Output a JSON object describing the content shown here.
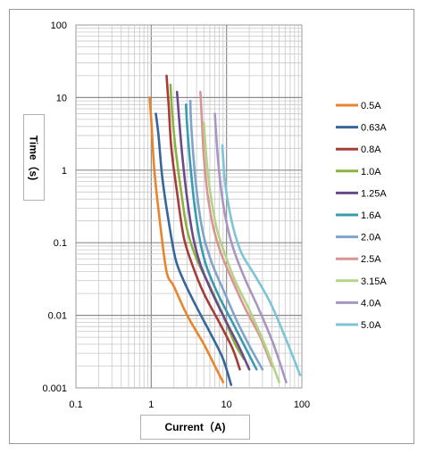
{
  "chart_data": {
    "type": "line",
    "title": "",
    "xlabel": "Current（A)",
    "ylabel": "Time（s)",
    "xscale": "log",
    "yscale": "log",
    "xlim": [
      0.1,
      100
    ],
    "ylim": [
      0.001,
      100
    ],
    "grid": true,
    "legend_position": "right",
    "x_ticks": [
      "0.1",
      "1",
      "10",
      "100"
    ],
    "y_ticks": [
      "0.001",
      "0.01",
      "0.1",
      "1",
      "10",
      "100"
    ],
    "series": [
      {
        "name": "0.5A",
        "color": "#E8842C",
        "x": [
          0.95,
          1.0,
          1.1,
          1.3,
          1.6,
          2.0,
          3.0,
          5.0,
          7.0,
          9.0
        ],
        "y": [
          10,
          5,
          1,
          0.2,
          0.04,
          0.025,
          0.01,
          0.004,
          0.002,
          0.0012
        ]
      },
      {
        "name": "0.63A",
        "color": "#36669C",
        "x": [
          1.15,
          1.25,
          1.4,
          1.7,
          2.1,
          2.7,
          4.0,
          6.5,
          9.0,
          11.5
        ],
        "y": [
          6,
          3,
          0.8,
          0.2,
          0.06,
          0.03,
          0.013,
          0.005,
          0.0025,
          0.0011
        ]
      },
      {
        "name": "0.8A",
        "color": "#A63C38",
        "x": [
          1.6,
          1.7,
          1.85,
          2.2,
          2.7,
          3.5,
          5.0,
          8.0,
          12.0,
          15.0
        ],
        "y": [
          20,
          8,
          2,
          0.5,
          0.12,
          0.05,
          0.02,
          0.008,
          0.0035,
          0.0018
        ]
      },
      {
        "name": "1.0A",
        "color": "#8BB240",
        "x": [
          1.8,
          1.9,
          2.1,
          2.5,
          3.0,
          4.0,
          6.0,
          9.0,
          13.0,
          17.0
        ],
        "y": [
          15,
          6,
          2,
          0.5,
          0.15,
          0.06,
          0.025,
          0.01,
          0.004,
          0.0025
        ]
      },
      {
        "name": "1.25A",
        "color": "#6A4A8A",
        "x": [
          2.2,
          2.35,
          2.6,
          3.0,
          3.6,
          4.5,
          6.5,
          10.0,
          15.0,
          20.0
        ],
        "y": [
          12,
          5,
          1.5,
          0.4,
          0.12,
          0.05,
          0.02,
          0.008,
          0.0035,
          0.0018
        ]
      },
      {
        "name": "1.6A",
        "color": "#3A9BAE",
        "x": [
          2.9,
          3.0,
          3.3,
          3.8,
          4.5,
          5.5,
          8.0,
          12.0,
          18.0,
          25.0
        ],
        "y": [
          8,
          4,
          1.2,
          0.3,
          0.1,
          0.045,
          0.018,
          0.008,
          0.0035,
          0.0018
        ]
      },
      {
        "name": "2.0A",
        "color": "#7FA4CC",
        "x": [
          3.3,
          3.4,
          3.7,
          4.2,
          5.0,
          6.5,
          9.5,
          14.0,
          21.0,
          30.0
        ],
        "y": [
          9,
          4,
          1.2,
          0.35,
          0.12,
          0.05,
          0.02,
          0.008,
          0.0035,
          0.0018
        ]
      },
      {
        "name": "2.5A",
        "color": "#DA9494",
        "x": [
          4.5,
          4.7,
          5.0,
          5.7,
          6.8,
          8.5,
          12.0,
          18.0,
          28.0,
          40.0
        ],
        "y": [
          12,
          5,
          1.5,
          0.4,
          0.15,
          0.07,
          0.03,
          0.012,
          0.005,
          0.002
        ]
      },
      {
        "name": "3.15A",
        "color": "#B5D386",
        "x": [
          5.0,
          5.2,
          5.6,
          6.4,
          7.5,
          9.5,
          13.0,
          20.0,
          32.0,
          50.0
        ],
        "y": [
          4.5,
          2.5,
          1.0,
          0.35,
          0.15,
          0.07,
          0.03,
          0.012,
          0.004,
          0.0012
        ]
      },
      {
        "name": "4.0A",
        "color": "#A896C2",
        "x": [
          7.0,
          7.3,
          7.8,
          8.8,
          10.5,
          13.0,
          18.0,
          27.0,
          42.0,
          62.0
        ],
        "y": [
          6,
          3,
          1.2,
          0.4,
          0.15,
          0.07,
          0.03,
          0.012,
          0.004,
          0.0012
        ]
      },
      {
        "name": "5.0A",
        "color": "#7CC4D6",
        "x": [
          8.8,
          9.0,
          9.4,
          10.5,
          12.5,
          16.0,
          24.0,
          38.0,
          60.0,
          95.0
        ],
        "y": [
          2.2,
          1.5,
          0.8,
          0.35,
          0.15,
          0.07,
          0.035,
          0.015,
          0.005,
          0.0015
        ]
      }
    ]
  }
}
